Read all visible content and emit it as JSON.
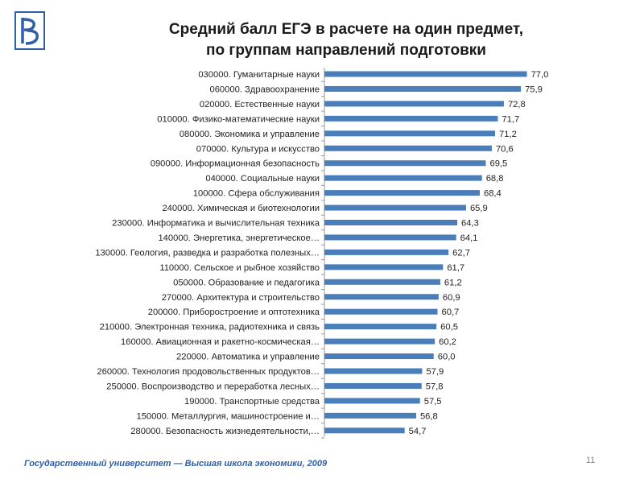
{
  "header": {
    "title_line1": "Средний балл ЕГЭ в расчете на один предмет,",
    "title_line2": "по группам направлений подготовки"
  },
  "footer": {
    "text": "Государственный университет — Высшая школа экономики, 2009",
    "page_number": "11"
  },
  "colors": {
    "bar": "#4a7ebb",
    "logo": "#2e5fa8",
    "footer": "#2e5fa8"
  },
  "chart_data": {
    "type": "bar",
    "orientation": "horizontal",
    "categories": [
      "030000. Гуманитарные науки",
      "060000. Здравоохранение",
      "020000. Естественные науки",
      "010000. Физико-математические науки",
      "080000. Экономика и управление",
      "070000. Культура и искусство",
      "090000. Информационная безопасность",
      "040000. Социальные науки",
      "100000. Сфера обслуживания",
      "240000. Химическая и биотехнологии",
      "230000. Информатика и вычислительная техника",
      "140000. Энергетика, энергетическое…",
      "130000. Геология, разведка и разработка полезных…",
      "110000. Сельское и рыбное хозяйство",
      "050000. Образование и педагогика",
      "270000. Архитектура и строительство",
      "200000. Приборостроение и оптотехника",
      "210000. Электронная техника, радиотехника и связь",
      "160000. Авиационная и ракетно-космическая…",
      "220000. Автоматика и управление",
      "260000. Технология продовольственных продуктов…",
      "250000. Воспроизводство и переработка лесных…",
      "190000. Транспортные средства",
      "150000. Металлургия, машиностроение и…",
      "280000. Безопасность жизнедеятельности,…"
    ],
    "values": [
      77.0,
      75.9,
      72.8,
      71.7,
      71.2,
      70.6,
      69.5,
      68.8,
      68.4,
      65.9,
      64.3,
      64.1,
      62.7,
      61.7,
      61.2,
      60.9,
      60.7,
      60.5,
      60.2,
      60.0,
      57.9,
      57.8,
      57.5,
      56.8,
      54.7
    ],
    "value_labels": [
      "77,0",
      "75,9",
      "72,8",
      "71,7",
      "71,2",
      "70,6",
      "69,5",
      "68,8",
      "68,4",
      "65,9",
      "64,3",
      "64,1",
      "62,7",
      "61,7",
      "61,2",
      "60,9",
      "60,7",
      "60,5",
      "60,2",
      "60,0",
      "57,9",
      "57,8",
      "57,5",
      "56,8",
      "54,7"
    ],
    "title": "Средний балл ЕГЭ в расчете на один предмет, по группам направлений подготовки",
    "xlabel": "",
    "ylabel": "",
    "xlim": [
      0,
      77
    ],
    "grid": false,
    "legend": "none"
  }
}
